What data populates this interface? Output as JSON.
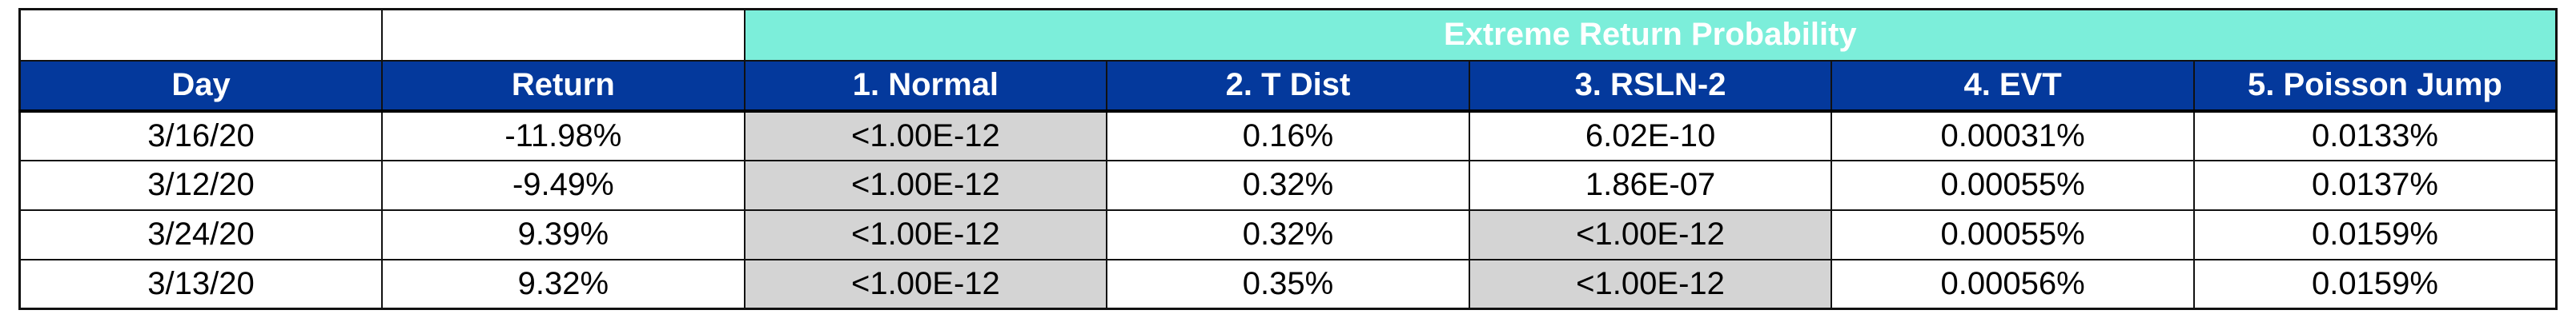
{
  "colors": {
    "header_teal": "#7CEEDA",
    "header_blue": "#04399C",
    "cell_gray": "#D4D4D4"
  },
  "chart_data": {
    "type": "table",
    "title": "Extreme Return Probability",
    "group_header_span": "columns 3-7 (1. Normal through 5. Poisson Jump)",
    "columns": [
      "Day",
      "Return",
      "1. Normal",
      "2. T Dist",
      "3. RSLN-2",
      "4. EVT",
      "5. Poisson Jump"
    ],
    "rows": [
      [
        "3/16/20",
        "-11.98%",
        "<1.00E-12",
        "0.16%",
        "6.02E-10",
        "0.00031%",
        "0.0133%"
      ],
      [
        "3/12/20",
        "-9.49%",
        "<1.00E-12",
        "0.32%",
        "1.86E-07",
        "0.00055%",
        "0.0137%"
      ],
      [
        "3/24/20",
        "9.39%",
        "<1.00E-12",
        "0.32%",
        "<1.00E-12",
        "0.00055%",
        "0.0159%"
      ],
      [
        "3/13/20",
        "9.32%",
        "<1.00E-12",
        "0.35%",
        "<1.00E-12",
        "0.00056%",
        "0.0159%"
      ]
    ],
    "shading_note": "Cells containing <1.00E-12 are shaded light gray",
    "layout": {
      "grid": "on",
      "header_style": "teal merged banner over blue column headers"
    }
  }
}
